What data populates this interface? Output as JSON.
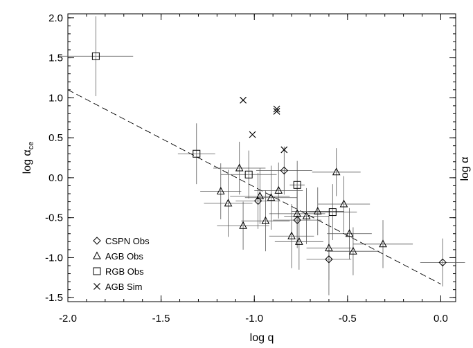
{
  "chart_data": {
    "type": "scatter",
    "xlabel": "log q",
    "ylabel": "log α",
    "ylabel_subscript": "ce",
    "xlim": [
      -2.0,
      0.08
    ],
    "ylim": [
      -1.55,
      2.05
    ],
    "xticks": [
      {
        "value": -2.0,
        "label": "-2.0"
      },
      {
        "value": -1.5,
        "label": "-1.5"
      },
      {
        "value": -1.0,
        "label": "-1.0"
      },
      {
        "value": -0.5,
        "label": "-0.5"
      },
      {
        "value": 0.0,
        "label": "0.0"
      }
    ],
    "yticks": [
      {
        "value": 2.0,
        "label": "2.0"
      },
      {
        "value": 1.5,
        "label": "1.5"
      },
      {
        "value": 1.0,
        "label": "1.0"
      },
      {
        "value": 0.5,
        "label": "0.5"
      },
      {
        "value": 0.0,
        "label": "0.0"
      },
      {
        "value": -0.5,
        "label": "-0.5"
      },
      {
        "value": -1.0,
        "label": "-1.0"
      },
      {
        "value": -1.5,
        "label": "-1.5"
      }
    ],
    "grid": false,
    "fit_line": {
      "style": "dashed",
      "x": [
        -2.0,
        0.0
      ],
      "y": [
        1.1,
        -1.33
      ]
    },
    "legend_position": "bottom-left",
    "series": [
      {
        "name": "CSPN Obs",
        "marker": "diamond",
        "points": [
          {
            "x": -0.84,
            "y": 0.09,
            "xerr": 0.15,
            "yerr": 0.3
          },
          {
            "x": -0.98,
            "y": -0.29,
            "xerr": 0.12,
            "yerr": 0.35
          },
          {
            "x": -0.77,
            "y": -0.53,
            "xerr": 0.13,
            "yerr": 0.35
          },
          {
            "x": -0.6,
            "y": -1.02,
            "xerr": 0.12,
            "yerr": 0.45
          },
          {
            "x": 0.01,
            "y": -1.06,
            "xerr": 0.12,
            "yerr": 0.3
          }
        ]
      },
      {
        "name": "AGB Obs",
        "marker": "triangle",
        "points": [
          {
            "x": -1.08,
            "y": 0.12,
            "xerr": 0.14,
            "yerr": 0.33
          },
          {
            "x": -1.18,
            "y": -0.17,
            "xerr": 0.11,
            "yerr": 0.35
          },
          {
            "x": -1.14,
            "y": -0.32,
            "xerr": 0.13,
            "yerr": 0.42
          },
          {
            "x": -0.97,
            "y": -0.23,
            "xerr": 0.16,
            "yerr": 0.35
          },
          {
            "x": -0.91,
            "y": -0.25,
            "xerr": 0.14,
            "yerr": 0.4
          },
          {
            "x": -0.87,
            "y": -0.16,
            "xerr": 0.13,
            "yerr": 0.35
          },
          {
            "x": -1.06,
            "y": -0.6,
            "xerr": 0.14,
            "yerr": 0.3
          },
          {
            "x": -0.94,
            "y": -0.54,
            "xerr": 0.13,
            "yerr": 0.38
          },
          {
            "x": -0.8,
            "y": -0.73,
            "xerr": 0.12,
            "yerr": 0.4
          },
          {
            "x": -0.76,
            "y": -0.8,
            "xerr": 0.13,
            "yerr": 0.35
          },
          {
            "x": -0.77,
            "y": -0.45,
            "xerr": 0.15,
            "yerr": 0.38
          },
          {
            "x": -0.72,
            "y": -0.48,
            "xerr": 0.12,
            "yerr": 0.35
          },
          {
            "x": -0.66,
            "y": -0.42,
            "xerr": 0.14,
            "yerr": 0.3
          },
          {
            "x": -0.6,
            "y": -0.88,
            "xerr": 0.12,
            "yerr": 0.4
          },
          {
            "x": -0.56,
            "y": 0.07,
            "xerr": 0.13,
            "yerr": 0.3
          },
          {
            "x": -0.52,
            "y": -0.33,
            "xerr": 0.14,
            "yerr": 0.35
          },
          {
            "x": -0.49,
            "y": -0.7,
            "xerr": 0.12,
            "yerr": 0.32
          },
          {
            "x": -0.47,
            "y": -0.92,
            "xerr": 0.14,
            "yerr": 0.3
          },
          {
            "x": -0.31,
            "y": -0.83,
            "xerr": 0.16,
            "yerr": 0.3
          }
        ]
      },
      {
        "name": "RGB Obs",
        "marker": "square",
        "points": [
          {
            "x": -1.85,
            "y": 1.52,
            "xerr": 0.2,
            "yerr": 0.5
          },
          {
            "x": -1.31,
            "y": 0.3,
            "xerr": 0.1,
            "yerr": 0.38
          },
          {
            "x": -1.03,
            "y": 0.04,
            "xerr": 0.15,
            "yerr": 0.3
          },
          {
            "x": -0.77,
            "y": -0.09,
            "xerr": 0.04,
            "yerr": 0.3
          },
          {
            "x": -0.58,
            "y": -0.43,
            "xerr": 0.13,
            "yerr": 0.35
          }
        ]
      },
      {
        "name": "AGB Sim",
        "marker": "x",
        "points": [
          {
            "x": -1.06,
            "y": 0.97
          },
          {
            "x": -1.01,
            "y": 0.54
          },
          {
            "x": -0.88,
            "y": 0.86
          },
          {
            "x": -0.88,
            "y": 0.83
          },
          {
            "x": -0.84,
            "y": 0.35
          }
        ]
      }
    ]
  }
}
